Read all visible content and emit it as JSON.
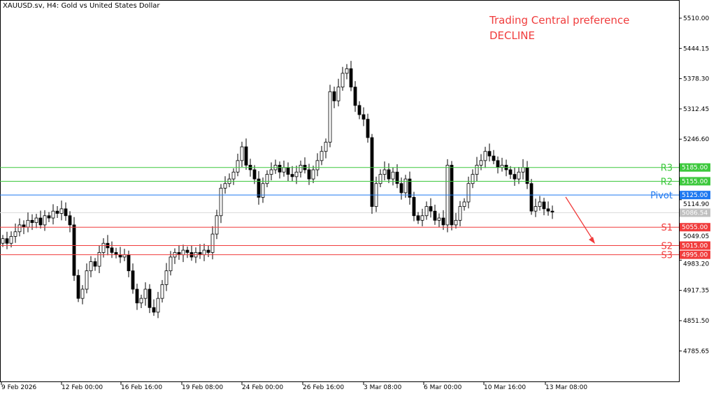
{
  "header": {
    "title": "XAUUSD.sv, H4:  Gold vs United States Dollar"
  },
  "annotation": {
    "line1": "Trading Central preference",
    "line2": "DECLINE",
    "color": "#f03c3c"
  },
  "chart_data": {
    "type": "candlestick",
    "symbol": "XAUUSD.sv",
    "timeframe": "H4",
    "ylim": [
      4745,
      5545
    ],
    "y_ticks": [
      "5510.00",
      "5444.15",
      "5378.30",
      "5312.45",
      "5246.60",
      "5114.90",
      "5049.05",
      "4983.20",
      "4917.35",
      "4851.50",
      "4785.65"
    ],
    "y_tick_values": [
      5510,
      5444.15,
      5378.3,
      5312.45,
      5246.6,
      5114.9,
      5049.05,
      4983.2,
      4917.35,
      4851.5,
      4785.65
    ],
    "x_ticks": [
      "9 Feb 2026",
      "12 Feb 00:00",
      "16 Feb 16:00",
      "19 Feb 08:00",
      "24 Feb 00:00",
      "26 Feb 16:00",
      "3 Mar 08:00",
      "6 Mar 00:00",
      "10 Mar 16:00",
      "13 Mar 08:00"
    ],
    "close": [
      5030,
      5020,
      5035,
      5045,
      5060,
      5055,
      5070,
      5065,
      5075,
      5060,
      5080,
      5075,
      5090,
      5085,
      5095,
      5080,
      5060,
      4950,
      4900,
      4920,
      4960,
      4980,
      4970,
      5000,
      5020,
      5010,
      5000,
      4995,
      4990,
      4995,
      4960,
      4920,
      4890,
      4900,
      4920,
      4880,
      4870,
      4900,
      4930,
      4960,
      4990,
      5000,
      4995,
      5005,
      5000,
      4990,
      5000,
      4995,
      5005,
      5000,
      5040,
      5080,
      5140,
      5150,
      5160,
      5175,
      5200,
      5230,
      5190,
      5180,
      5160,
      5120,
      5150,
      5170,
      5180,
      5190,
      5175,
      5185,
      5170,
      5165,
      5175,
      5190,
      5180,
      5160,
      5180,
      5200,
      5220,
      5240,
      5350,
      5330,
      5360,
      5390,
      5400,
      5360,
      5320,
      5300,
      5290,
      5250,
      5100,
      5150,
      5170,
      5180,
      5160,
      5175,
      5150,
      5130,
      5160,
      5120,
      5080,
      5070,
      5080,
      5100,
      5090,
      5070,
      5075,
      5060,
      5190,
      5060,
      5070,
      5100,
      5110,
      5150,
      5170,
      5190,
      5200,
      5220,
      5210,
      5200,
      5185,
      5190,
      5180,
      5170,
      5160,
      5175,
      5185,
      5150,
      5090,
      5100,
      5110,
      5095,
      5090,
      5088
    ],
    "levels": [
      {
        "name": "R3",
        "value": 5185,
        "label": "5185.00",
        "color": "#3cc83c"
      },
      {
        "name": "R2",
        "value": 5155,
        "label": "5155.00",
        "color": "#3cc83c"
      },
      {
        "name": "Pivot",
        "value": 5125,
        "label": "5125.00",
        "color": "#1e78f0"
      },
      {
        "name": "S1",
        "value": 5055,
        "label": "5055.00",
        "color": "#f03c3c"
      },
      {
        "name": "S2",
        "value": 5015,
        "label": "5015.00",
        "color": "#f03c3c"
      },
      {
        "name": "S3",
        "value": 4995,
        "label": "4995.00",
        "color": "#f03c3c"
      }
    ],
    "current_price": {
      "value": 5086.54,
      "label": "5086.54",
      "color": "#c0c0c0"
    }
  }
}
